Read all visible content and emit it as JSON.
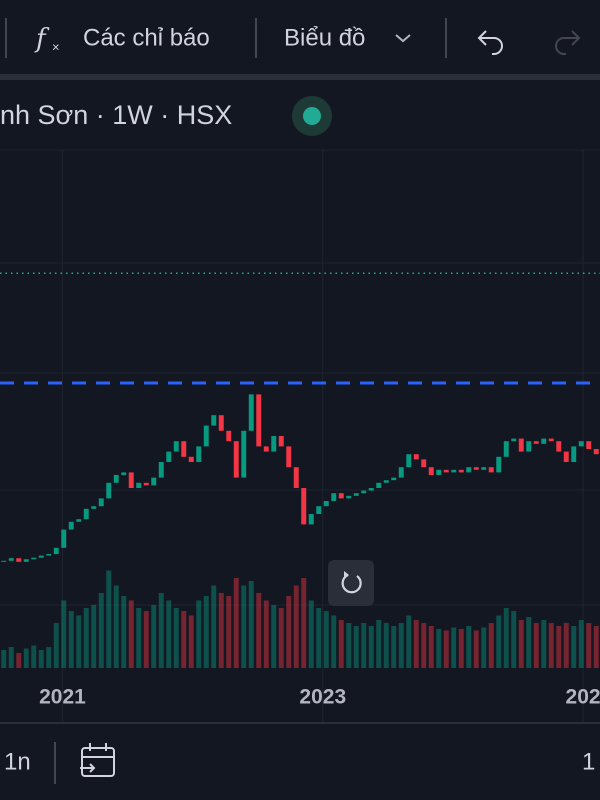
{
  "toolbar": {
    "indicators": "Các chỉ báo",
    "chart_type": "Biểu đồ"
  },
  "legend": "nh Sơn · 1W · HSX",
  "bottom_bar": {
    "range": "1n",
    "right": "1"
  },
  "chart_data": {
    "type": "candlestick",
    "close": [
      21,
      21.5,
      20.8,
      21.3,
      21.6,
      22,
      22.3,
      23.5,
      27,
      28.5,
      29,
      31,
      31.5,
      33,
      36,
      37.5,
      38,
      35,
      36,
      35.5,
      37,
      40,
      42,
      44,
      41,
      40,
      43,
      47,
      49,
      46,
      44,
      37,
      46,
      53,
      43,
      42,
      45,
      43,
      39,
      35,
      28,
      30,
      31.5,
      32.5,
      34,
      33,
      33.5,
      34,
      34.5,
      35,
      36,
      36.5,
      37,
      39,
      41.5,
      40.5,
      39,
      37.5,
      38.5,
      38,
      38.5,
      38,
      39,
      38.5,
      39,
      38,
      41,
      44,
      44.5,
      42,
      44,
      43.5,
      44.5,
      44,
      42,
      40,
      43,
      44,
      42.5,
      41.5
    ],
    "volume": [
      12,
      14,
      10,
      13,
      15,
      12,
      14,
      30,
      45,
      38,
      35,
      40,
      42,
      50,
      65,
      55,
      48,
      45,
      40,
      38,
      42,
      50,
      45,
      40,
      38,
      35,
      45,
      48,
      55,
      50,
      48,
      60,
      55,
      58,
      50,
      45,
      42,
      40,
      48,
      55,
      60,
      45,
      40,
      38,
      35,
      32,
      30,
      28,
      30,
      28,
      32,
      30,
      28,
      30,
      35,
      32,
      30,
      28,
      26,
      25,
      27,
      26,
      28,
      25,
      27,
      30,
      35,
      40,
      38,
      32,
      34,
      30,
      32,
      30,
      28,
      30,
      28,
      32,
      30,
      28
    ],
    "up_color": "#089981",
    "down_color": "#f23645",
    "ylim": [
      0,
      100
    ],
    "volume_lim": [
      0,
      100
    ],
    "xlim": [
      2020.52,
      2025.13
    ],
    "xticks": [
      2021,
      2023,
      {
        "value": 2025,
        "label": "202"
      }
    ],
    "price_lines": [
      {
        "value": 55.2,
        "color": "#2962ff",
        "style": "dashed"
      },
      {
        "value": 76.3,
        "color": "#22ab94",
        "style": "dotted"
      }
    ]
  }
}
